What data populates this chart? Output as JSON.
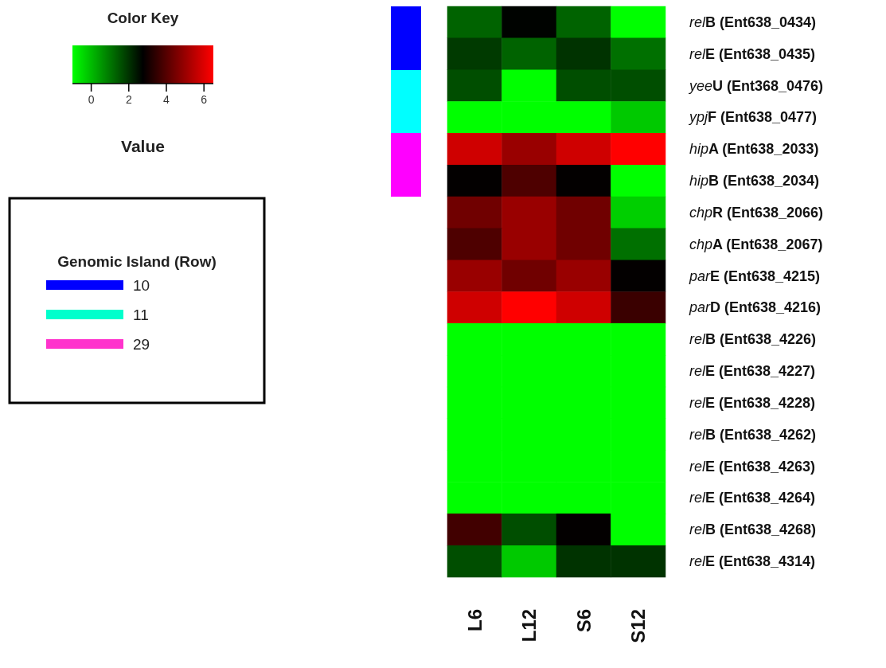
{
  "chart_data": {
    "type": "heatmap",
    "categories": [
      "L6",
      "L12",
      "S6",
      "S12"
    ],
    "y_categories": [
      "relB (Ent638_0434)",
      "relE (Ent638_0435)",
      "yeeU (Ent368_0476)",
      "ypjF (Ent638_0477)",
      "hipA (Ent638_2033)",
      "hipB (Ent638_2034)",
      "chpR (Ent638_2066)",
      "chpA (Ent638_2067)",
      "parE (Ent638_4215)",
      "parD (Ent638_4216)",
      "relB (Ent638_4226)",
      "relE (Ent638_4227)",
      "relE (Ent638_4228)",
      "relB (Ent638_4262)",
      "relE (Ent638_4263)",
      "relE (Ent638_4264)",
      "relB (Ent638_4268)",
      "relE (Ent638_4314)"
    ],
    "cells": [
      [
        1.3,
        2.7,
        1.3,
        -1
      ],
      [
        1.9,
        1.3,
        2.0,
        1.1
      ],
      [
        1.6,
        -1,
        1.6,
        1.6
      ],
      [
        -1,
        -1,
        -1,
        -0.2
      ],
      [
        5.8,
        5.0,
        5.8,
        6.5
      ],
      [
        2.8,
        3.9,
        2.8,
        -1
      ],
      [
        4.4,
        5.0,
        4.4,
        -0.3
      ],
      [
        3.9,
        5.0,
        4.4,
        1.1
      ],
      [
        5.0,
        4.4,
        5.0,
        2.8
      ],
      [
        5.8,
        6.5,
        5.8,
        3.6
      ],
      [
        -1,
        -1,
        -1,
        -1
      ],
      [
        -1,
        -1,
        -1,
        -1
      ],
      [
        -1,
        -1,
        -1,
        -1
      ],
      [
        -1,
        -1,
        -1,
        -1
      ],
      [
        -1,
        -1,
        -1,
        -1
      ],
      [
        -1,
        -1,
        -1,
        -1
      ],
      [
        3.7,
        1.6,
        2.8,
        -1
      ],
      [
        1.6,
        -0.2,
        2.0,
        2.0
      ]
    ],
    "clim": [
      -1,
      6.5
    ],
    "cticks": [
      0,
      2,
      4,
      6
    ],
    "clabel": "Value",
    "legend_title": "Genomic Island (Row)",
    "annotations": [
      "Color Key",
      "10",
      "11",
      "29"
    ]
  }
}
